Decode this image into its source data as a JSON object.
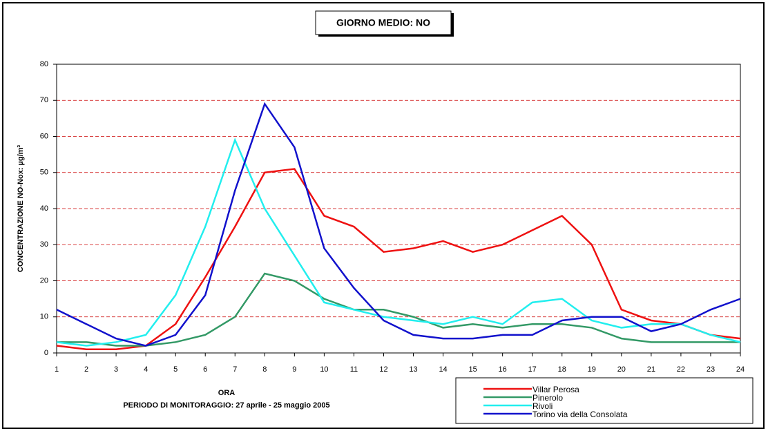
{
  "chart_data": {
    "type": "line",
    "title": "GIORNO MEDIO: NO",
    "y_label": "CONCENTRAZIONE NO-Nox: µg/m³",
    "x_label": "ORA",
    "subtitle": "PERIODO DI MONITORAGGIO: 27 aprile - 25 maggio 2005",
    "categories": [
      1,
      2,
      3,
      4,
      5,
      6,
      7,
      8,
      9,
      10,
      11,
      12,
      13,
      14,
      15,
      16,
      17,
      18,
      19,
      20,
      21,
      22,
      23,
      24
    ],
    "ylim": [
      0,
      80
    ],
    "yticks": [
      0,
      10,
      20,
      30,
      40,
      50,
      60,
      70,
      80
    ],
    "grid": true,
    "series": [
      {
        "name": "Villar Perosa",
        "color": "#ee1111",
        "values": [
          2,
          1,
          1,
          2,
          8,
          21,
          35,
          50,
          51,
          38,
          35,
          28,
          29,
          31,
          28,
          30,
          34,
          38,
          30,
          12,
          9,
          8,
          5,
          4
        ]
      },
      {
        "name": "Pinerolo",
        "color": "#339966",
        "values": [
          3,
          3,
          2,
          2,
          3,
          5,
          10,
          22,
          20,
          15,
          12,
          12,
          10,
          7,
          8,
          7,
          8,
          8,
          7,
          4,
          3,
          3,
          3,
          3
        ]
      },
      {
        "name": "Rivoli",
        "color": "#22eeee",
        "values": [
          3,
          2,
          3,
          5,
          16,
          35,
          59,
          40,
          27,
          14,
          12,
          10,
          9,
          8,
          10,
          8,
          14,
          15,
          9,
          7,
          8,
          8,
          5,
          3
        ]
      },
      {
        "name": "Torino via della Consolata",
        "color": "#1111cc",
        "values": [
          12,
          8,
          4,
          2,
          5,
          16,
          45,
          69,
          57,
          29,
          18,
          9,
          5,
          4,
          4,
          5,
          5,
          9,
          10,
          10,
          6,
          8,
          12,
          15
        ]
      }
    ]
  }
}
